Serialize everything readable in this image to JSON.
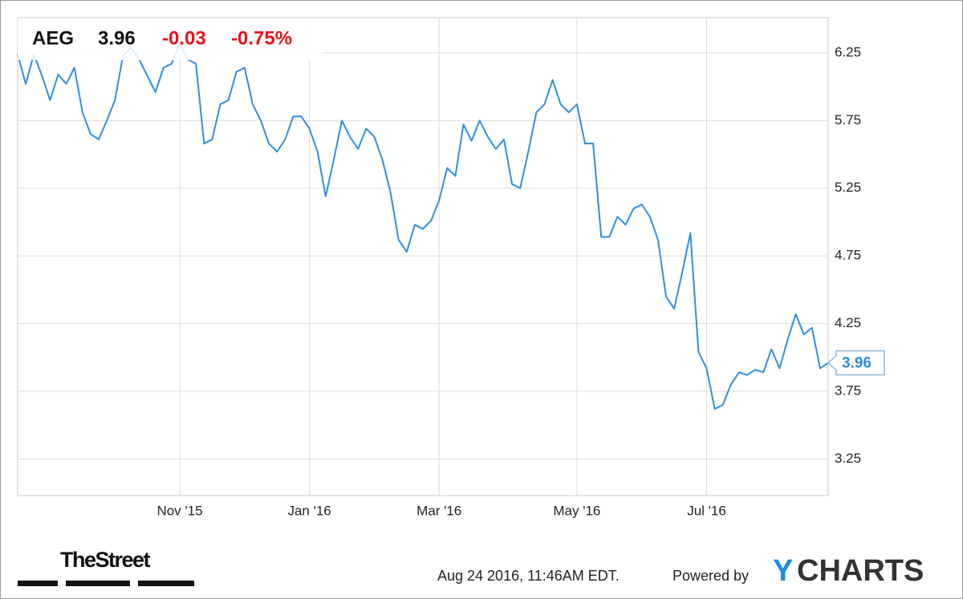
{
  "chart_data": {
    "type": "line",
    "ticker": "AEG",
    "price": "3.96",
    "change": "-0.03",
    "change_percent": "-0.75%",
    "categories": [
      null,
      null,
      null,
      null,
      null,
      null,
      null,
      null,
      null,
      null,
      null,
      null,
      null,
      null,
      null,
      null,
      null,
      null,
      null,
      null,
      "Nov '15",
      null,
      null,
      null,
      null,
      null,
      null,
      null,
      null,
      null,
      null,
      null,
      null,
      null,
      null,
      null,
      "Jan '16",
      null,
      null,
      null,
      null,
      null,
      null,
      null,
      null,
      null,
      null,
      null,
      null,
      null,
      null,
      null,
      "Mar '16",
      null,
      null,
      null,
      null,
      null,
      null,
      null,
      null,
      null,
      null,
      null,
      null,
      null,
      null,
      null,
      null,
      "May '16",
      null,
      null,
      null,
      null,
      null,
      null,
      null,
      null,
      null,
      null,
      null,
      null,
      null,
      null,
      null,
      "Jul '16",
      null,
      null,
      null,
      null,
      null,
      null,
      null,
      null,
      null,
      null,
      null,
      null,
      null,
      null,
      null
    ],
    "values": [
      6.24,
      6.02,
      6.24,
      6.08,
      5.9,
      6.09,
      6.02,
      6.14,
      5.81,
      5.65,
      5.61,
      5.75,
      5.9,
      6.23,
      6.29,
      6.2,
      6.08,
      5.96,
      6.14,
      6.17,
      6.32,
      6.2,
      6.17,
      5.58,
      5.61,
      5.87,
      5.9,
      6.11,
      6.14,
      5.87,
      5.75,
      5.58,
      5.52,
      5.61,
      5.78,
      5.78,
      5.69,
      5.52,
      5.19,
      5.46,
      5.75,
      5.63,
      5.54,
      5.69,
      5.63,
      5.46,
      5.22,
      4.87,
      4.78,
      4.98,
      4.95,
      5.01,
      5.16,
      5.4,
      5.34,
      5.72,
      5.6,
      5.75,
      5.63,
      5.54,
      5.61,
      5.28,
      5.25,
      5.52,
      5.81,
      5.87,
      6.05,
      5.87,
      5.81,
      5.87,
      5.58,
      5.58,
      4.89,
      4.89,
      5.04,
      4.98,
      5.1,
      5.13,
      5.04,
      4.87,
      4.45,
      4.36,
      4.63,
      4.92,
      4.04,
      3.92,
      3.62,
      3.65,
      3.8,
      3.89,
      3.87,
      3.91,
      3.89,
      4.06,
      3.92,
      4.13,
      4.32,
      4.17,
      4.22,
      3.92,
      3.96
    ],
    "color": "#2f8ee3",
    "ylim": [
      2.98,
      6.51
    ],
    "yticks": [
      3.25,
      3.75,
      4.25,
      4.75,
      5.25,
      5.75,
      6.25
    ],
    "grid": true
  },
  "footer": {
    "brand": "TheStreet",
    "timestamp": "Aug 24 2016, 11:46AM EDT.",
    "powered_by": "Powered by",
    "logo_prefix": "Y",
    "logo_suffix": "CHARTS"
  }
}
